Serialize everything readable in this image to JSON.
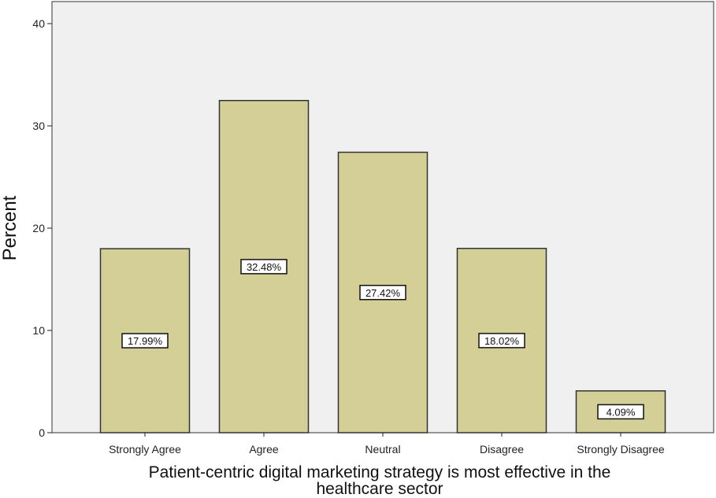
{
  "chart_data": {
    "type": "bar",
    "categories": [
      "Strongly Agree",
      "Agree",
      "Neutral",
      "Disagree",
      "Strongly Disagree"
    ],
    "values": [
      17.99,
      32.48,
      27.42,
      18.02,
      4.09
    ],
    "data_labels": [
      "17.99%",
      "32.48%",
      "27.42%",
      "18.02%",
      "4.09%"
    ],
    "xlabel_lines": [
      "Patient-centric digital marketing strategy is most effective in the",
      "healthcare sector"
    ],
    "ylabel": "Percent",
    "ylim": [
      0,
      40
    ],
    "yticks": [
      0,
      10,
      20,
      30,
      40
    ],
    "grid": false,
    "colors": {
      "bar_fill": "#d3cf97",
      "bar_stroke": "#333333",
      "plot_bg": "#f0f0f0",
      "axis": "#222222"
    }
  }
}
